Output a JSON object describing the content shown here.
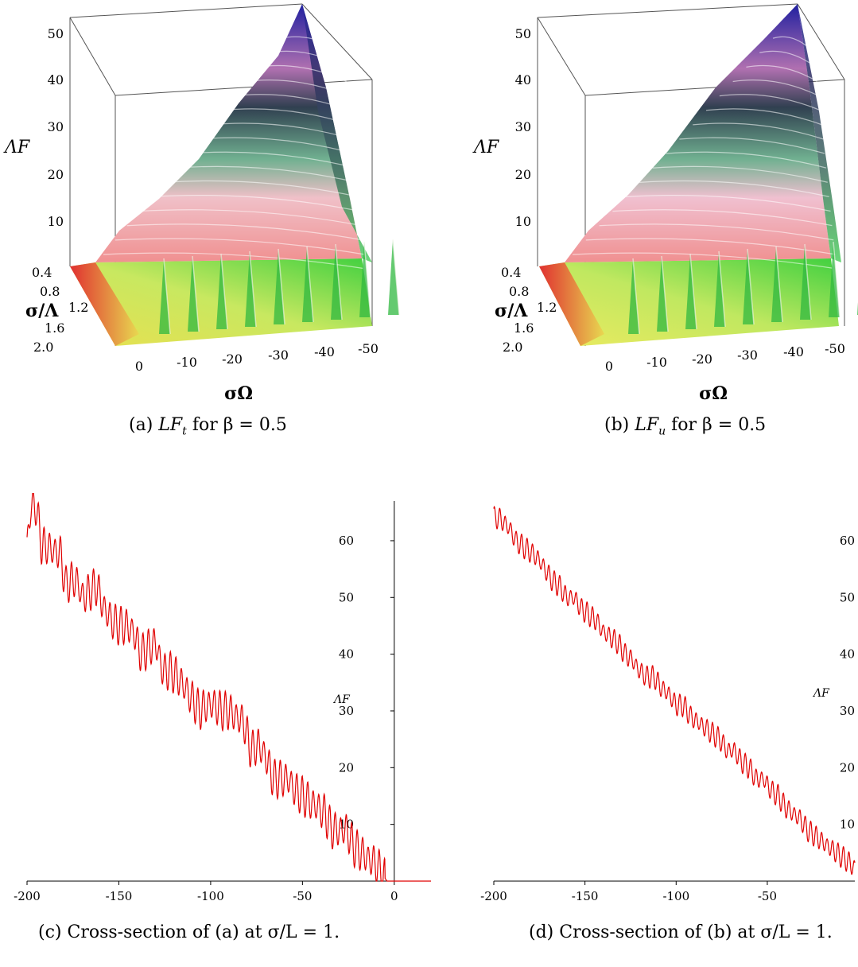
{
  "captions": {
    "a": {
      "lead": "(a)",
      "term": "LF",
      "sub": "t",
      "rest": "for β = 0.5"
    },
    "b": {
      "lead": "(b)",
      "term": "LF",
      "sub": "u",
      "rest": "for β = 0.5"
    },
    "c": "(c) Cross-section of (a) at σ/L = 1.",
    "d": "(d) Cross-section of (b) at σ/L = 1."
  },
  "chart_data": [
    {
      "id": "a",
      "type": "surface3d",
      "zlabel": "ΛF",
      "ylabel": "σ/Λ",
      "xlabel": "σΩ",
      "z_ticks": [
        "10",
        "20",
        "30",
        "40",
        "50"
      ],
      "y_ticks": [
        "0.4",
        "0.8",
        "1.2",
        "1.6",
        "2.0"
      ],
      "x_ticks": [
        "0",
        "-10",
        "-20",
        "-30",
        "-40",
        "-50"
      ],
      "ranges": {
        "sigma_omega": [
          5,
          -50
        ],
        "sigma_over_lambda": [
          0.4,
          2.0
        ],
        "lambda_F": [
          0,
          55
        ]
      },
      "colormap": [
        "#e03030",
        "#e8e050",
        "#40d040",
        "#304050",
        "#f07080",
        "#2020a0"
      ]
    },
    {
      "id": "b",
      "type": "surface3d",
      "zlabel": "ΛF",
      "ylabel": "σ/Λ",
      "xlabel": "σΩ",
      "z_ticks": [
        "10",
        "20",
        "30",
        "40",
        "50"
      ],
      "y_ticks": [
        "0.4",
        "0.8",
        "1.2",
        "1.6",
        "2.0"
      ],
      "x_ticks": [
        "0",
        "-10",
        "-20",
        "-30",
        "-40",
        "-50"
      ],
      "ranges": {
        "sigma_omega": [
          5,
          -50
        ],
        "sigma_over_lambda": [
          0.4,
          2.0
        ],
        "lambda_F": [
          0,
          55
        ]
      },
      "colormap": [
        "#e03030",
        "#e8e050",
        "#40d040",
        "#304050",
        "#f07080",
        "#2020a0"
      ]
    },
    {
      "id": "c",
      "type": "line",
      "xlabel": "σΩ",
      "ylabel": "ΛF",
      "xlim": [
        -200,
        20
      ],
      "ylim": [
        0,
        67
      ],
      "x_ticks": [
        -200,
        -150,
        -100,
        -50,
        0
      ],
      "y_ticks": [
        10,
        20,
        30,
        40,
        50,
        60
      ],
      "x_tick_labels": [
        "-200",
        "-150",
        "-100",
        "-50",
        "0"
      ],
      "y_tick_labels": [
        "10",
        "20",
        "30",
        "40",
        "50",
        "60"
      ],
      "color": "#e00000",
      "series_points": [
        [
          -200,
          59
        ],
        [
          -198,
          66
        ],
        [
          -195,
          66
        ],
        [
          -192,
          59
        ],
        [
          -189,
          59
        ],
        [
          -185,
          58
        ],
        [
          -182,
          58
        ],
        [
          -179,
          52
        ],
        [
          -176,
          53
        ],
        [
          -173,
          53
        ],
        [
          -170,
          50
        ],
        [
          -166,
          51
        ],
        [
          -162,
          52
        ],
        [
          -158,
          48
        ],
        [
          -154,
          46
        ],
        [
          -150,
          45
        ],
        [
          -146,
          45
        ],
        [
          -142,
          44
        ],
        [
          -138,
          40
        ],
        [
          -134,
          41
        ],
        [
          -130,
          42
        ],
        [
          -126,
          37
        ],
        [
          -122,
          37
        ],
        [
          -118,
          36
        ],
        [
          -114,
          34
        ],
        [
          -110,
          32
        ],
        [
          -106,
          30
        ],
        [
          -102,
          31
        ],
        [
          -98,
          31
        ],
        [
          -94,
          30
        ],
        [
          -90,
          30
        ],
        [
          -86,
          29
        ],
        [
          -82,
          28
        ],
        [
          -78,
          23
        ],
        [
          -74,
          24
        ],
        [
          -70,
          22
        ],
        [
          -66,
          18
        ],
        [
          -62,
          18
        ],
        [
          -58,
          18
        ],
        [
          -54,
          16
        ],
        [
          -50,
          15
        ],
        [
          -46,
          14
        ],
        [
          -42,
          13
        ],
        [
          -38,
          12
        ],
        [
          -34,
          9
        ],
        [
          -30,
          9
        ],
        [
          -26,
          9
        ],
        [
          -22,
          6
        ],
        [
          -18,
          5
        ],
        [
          -14,
          4
        ],
        [
          -10,
          3
        ],
        [
          -6,
          1
        ],
        [
          -4,
          0
        ],
        [
          0,
          0
        ],
        [
          20,
          0
        ]
      ]
    },
    {
      "id": "d",
      "type": "line",
      "xlabel": "σΩ",
      "ylabel": "ΛF",
      "xlim": [
        -200,
        -2
      ],
      "ylim": [
        0,
        67
      ],
      "x_ticks": [
        -200,
        -150,
        -100,
        -50
      ],
      "y_ticks": [
        10,
        20,
        30,
        40,
        50,
        60
      ],
      "x_tick_labels": [
        "-200",
        "-150",
        "-100",
        "-50"
      ],
      "y_tick_labels": [
        "10",
        "20",
        "30",
        "40",
        "50",
        "60"
      ],
      "color": "#e00000",
      "series_points": [
        [
          -200,
          64
        ],
        [
          -197,
          64
        ],
        [
          -194,
          63
        ],
        [
          -191,
          62
        ],
        [
          -188,
          60
        ],
        [
          -184,
          59
        ],
        [
          -180,
          58
        ],
        [
          -176,
          57
        ],
        [
          -172,
          55
        ],
        [
          -168,
          53
        ],
        [
          -164,
          52
        ],
        [
          -160,
          50
        ],
        [
          -156,
          50
        ],
        [
          -152,
          48
        ],
        [
          -148,
          47
        ],
        [
          -144,
          46
        ],
        [
          -140,
          44
        ],
        [
          -136,
          43
        ],
        [
          -132,
          42
        ],
        [
          -128,
          40
        ],
        [
          -124,
          39
        ],
        [
          -120,
          37
        ],
        [
          -116,
          36
        ],
        [
          -112,
          36
        ],
        [
          -108,
          34
        ],
        [
          -104,
          33
        ],
        [
          -100,
          31
        ],
        [
          -96,
          31
        ],
        [
          -92,
          29
        ],
        [
          -88,
          28
        ],
        [
          -84,
          27
        ],
        [
          -80,
          26
        ],
        [
          -76,
          25
        ],
        [
          -72,
          23
        ],
        [
          -68,
          23
        ],
        [
          -64,
          21
        ],
        [
          -60,
          20
        ],
        [
          -56,
          18
        ],
        [
          -52,
          18
        ],
        [
          -48,
          16
        ],
        [
          -44,
          15
        ],
        [
          -40,
          13
        ],
        [
          -36,
          12
        ],
        [
          -32,
          11
        ],
        [
          -28,
          9
        ],
        [
          -24,
          8
        ],
        [
          -20,
          7
        ],
        [
          -16,
          6
        ],
        [
          -12,
          5
        ],
        [
          -8,
          4
        ],
        [
          -4,
          3
        ],
        [
          -2,
          2
        ]
      ]
    }
  ]
}
